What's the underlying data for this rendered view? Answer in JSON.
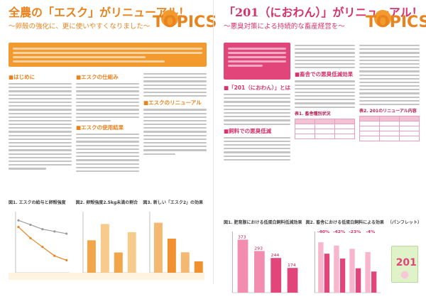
{
  "left": {
    "title": "全農の「エスク」がリニューアル！",
    "subtitle": "～卵殻の強化に、更に使いやすくなりました～",
    "topics_label": "TOPICS",
    "sections": [
      {
        "heading": "■はじめに"
      },
      {
        "heading": "■エスクの仕組み"
      },
      {
        "heading": "■エスクの使用結果"
      },
      {
        "heading": "■エスクのリニューアル"
      }
    ],
    "chart1_title": "図1. エスクの給与と卵殻強度",
    "chart2_title": "図2. 卵殻強度2.5kg未満の割合",
    "chart3_title": "図3. 新しい「エスク2」の効果",
    "chart1": {
      "lines": [
        [
          3.95,
          3.9,
          3.86,
          3.82,
          3.8
        ],
        [
          3.98,
          3.96,
          3.94,
          3.93,
          3.92
        ]
      ]
    },
    "chart2": {
      "values": [
        8,
        12,
        5,
        10
      ]
    },
    "chart3": {
      "values": [
        22,
        15,
        9,
        5
      ]
    }
  },
  "right": {
    "title": "「201（におわん）」がリニューアル！",
    "subtitle": "～悪臭対策による持続的な畜産経営を～",
    "topics_label": "TOPICS",
    "sections": [
      {
        "heading": "■「201（におわん）」とは"
      },
      {
        "heading": "■飼料での悪臭低減"
      },
      {
        "heading": "■畜舎での悪臭低減効果"
      }
    ],
    "table1_title": "表1. 畜舎種別状況",
    "table2_title": "表2. 201のリニューアル内容",
    "chart4_title": "図1. 肥育豚における低蛋白飼料低減効果",
    "chart5_title": "図2. 畜舎における低蛋白飼料による効果",
    "pamphlet_title": "（パンフレット）",
    "pamphlet_label": "201",
    "chart4": {
      "labels": [
        "373",
        "293",
        "244",
        "174"
      ],
      "values": [
        373,
        293,
        244,
        174
      ]
    },
    "chart5": {
      "values": [
        [
          620,
          480
        ],
        [
          580,
          420
        ],
        [
          540,
          300
        ],
        [
          500,
          260
        ]
      ],
      "labels": [
        "-40%",
        "-42%",
        "-23%",
        "-4%"
      ]
    },
    "accent": "#d6336c"
  }
}
